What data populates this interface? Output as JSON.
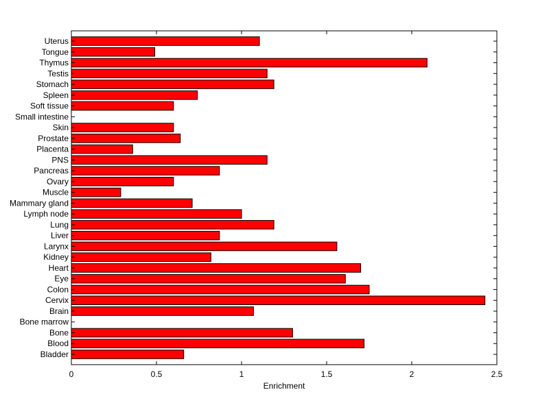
{
  "chart_data": {
    "type": "bar",
    "orientation": "horizontal",
    "title": "",
    "xlabel": "Enrichment",
    "ylabel": "",
    "xlim": [
      0,
      2.5
    ],
    "xticks": [
      "0",
      "0.5",
      "1",
      "1.5",
      "2",
      "2.5"
    ],
    "xtick_values": [
      0,
      0.5,
      1,
      1.5,
      2,
      2.5
    ],
    "bar_color": "#ff0000",
    "grid": false,
    "categories": [
      "Bladder",
      "Blood",
      "Bone",
      "Bone marrow",
      "Brain",
      "Cervix",
      "Colon",
      "Eye",
      "Heart",
      "Kidney",
      "Larynx",
      "Liver",
      "Lung",
      "Lymph node",
      "Mammary gland",
      "Muscle",
      "Ovary",
      "Pancreas",
      "PNS",
      "Placenta",
      "Prostate",
      "Skin",
      "Small intestine",
      "Soft tissue",
      "Spleen",
      "Stomach",
      "Testis",
      "Thymus",
      "Tongue",
      "Uterus"
    ],
    "values": [
      0.66,
      1.72,
      1.3,
      0,
      1.07,
      2.43,
      1.75,
      1.61,
      1.7,
      0.82,
      1.56,
      0.87,
      1.19,
      1.0,
      0.71,
      0.29,
      0.6,
      0.87,
      1.15,
      0.36,
      0.64,
      0.6,
      0,
      0.6,
      0.74,
      1.19,
      1.15,
      2.09,
      0.49,
      1.105
    ]
  }
}
